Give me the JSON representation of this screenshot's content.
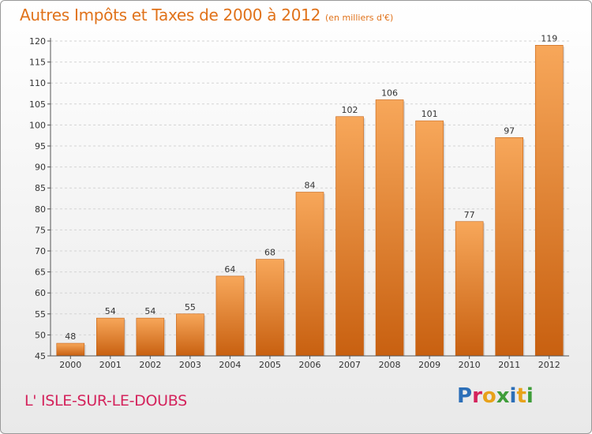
{
  "page": {
    "title": "Autres Impôts et Taxes de 2000 à 2012",
    "subtitle": "(en milliers d'€)",
    "location": "L' ISLE-SUR-LE-DOUBS",
    "brand": "Proxiti",
    "colors": {
      "title": "#e0721a",
      "location": "#d4235c",
      "bar_light": "#f7a75a",
      "bar_dark": "#c86010",
      "brand_letters": [
        "#2c6fb8",
        "#d4235c",
        "#e8a21a",
        "#3f9d3a",
        "#2c6fb8",
        "#e8a21a",
        "#3f9d3a"
      ]
    }
  },
  "chart_data": {
    "type": "bar",
    "title": "Autres Impôts et Taxes de 2000 à 2012",
    "subtitle": "(en milliers d'€)",
    "xlabel": "",
    "ylabel": "",
    "categories": [
      "2000",
      "2001",
      "2002",
      "2003",
      "2004",
      "2005",
      "2006",
      "2007",
      "2008",
      "2009",
      "2010",
      "2011",
      "2012"
    ],
    "values": [
      48,
      54,
      54,
      55,
      64,
      68,
      84,
      102,
      106,
      101,
      77,
      97,
      119
    ],
    "ylim": [
      45,
      120
    ],
    "yticks": [
      45,
      50,
      55,
      60,
      65,
      70,
      75,
      80,
      85,
      90,
      95,
      100,
      105,
      110,
      115,
      120
    ],
    "grid": true,
    "legend": "none"
  }
}
